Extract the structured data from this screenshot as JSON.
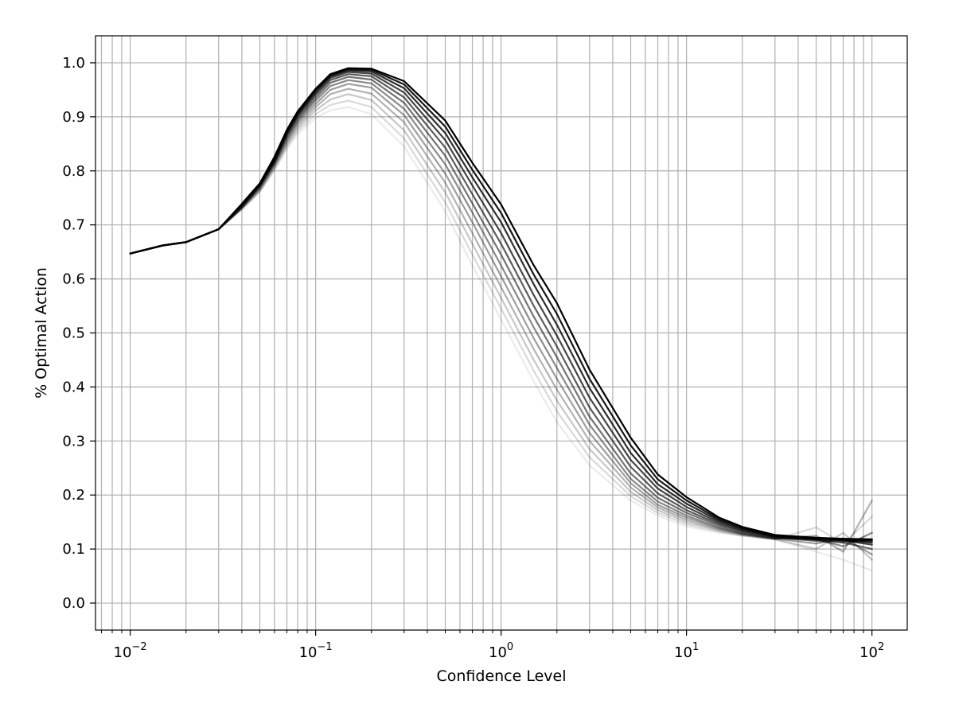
{
  "chart_data": {
    "type": "line",
    "title": "",
    "xlabel": "Confidence Level",
    "ylabel": "% Optimal Action",
    "x_scale": "log",
    "xlim": [
      0.0065,
      155
    ],
    "ylim": [
      -0.05,
      1.05
    ],
    "grid": true,
    "grid_minor_x": true,
    "legend": "none",
    "x_ticks": [
      {
        "value": 0.01,
        "base": "10",
        "exp": "−2"
      },
      {
        "value": 0.1,
        "base": "10",
        "exp": "−1"
      },
      {
        "value": 1,
        "base": "10",
        "exp": "0"
      },
      {
        "value": 10,
        "base": "10",
        "exp": "1"
      },
      {
        "value": 100,
        "base": "10",
        "exp": "2"
      }
    ],
    "y_ticks": [
      {
        "value": 0.0,
        "label": "0.0"
      },
      {
        "value": 0.1,
        "label": "0.1"
      },
      {
        "value": 0.2,
        "label": "0.2"
      },
      {
        "value": 0.3,
        "label": "0.3"
      },
      {
        "value": 0.4,
        "label": "0.4"
      },
      {
        "value": 0.5,
        "label": "0.5"
      },
      {
        "value": 0.6,
        "label": "0.6"
      },
      {
        "value": 0.7,
        "label": "0.7"
      },
      {
        "value": 0.8,
        "label": "0.8"
      },
      {
        "value": 0.9,
        "label": "0.9"
      },
      {
        "value": 1.0,
        "label": "1.0"
      }
    ],
    "line_color": "#000000",
    "x": [
      0.01,
      0.015,
      0.02,
      0.03,
      0.04,
      0.05,
      0.06,
      0.07,
      0.08,
      0.1,
      0.12,
      0.15,
      0.2,
      0.3,
      0.5,
      0.7,
      1.0,
      1.5,
      2,
      3,
      5,
      7,
      10,
      15,
      20,
      30,
      50,
      70,
      100
    ],
    "series": [
      {
        "opacity": 0.08,
        "values": [
          0.647,
          0.662,
          0.668,
          0.692,
          0.728,
          0.76,
          0.8,
          0.84,
          0.868,
          0.898,
          0.912,
          0.918,
          0.905,
          0.845,
          0.725,
          0.625,
          0.525,
          0.41,
          0.335,
          0.255,
          0.19,
          0.162,
          0.142,
          0.13,
          0.124,
          0.118,
          0.095,
          0.08,
          0.06
        ]
      },
      {
        "opacity": 0.15,
        "values": [
          0.647,
          0.662,
          0.668,
          0.692,
          0.729,
          0.762,
          0.803,
          0.844,
          0.873,
          0.905,
          0.922,
          0.93,
          0.918,
          0.86,
          0.742,
          0.645,
          0.545,
          0.43,
          0.355,
          0.27,
          0.198,
          0.167,
          0.146,
          0.132,
          0.125,
          0.118,
          0.14,
          0.11,
          0.16
        ]
      },
      {
        "opacity": 0.22,
        "values": [
          0.647,
          0.662,
          0.668,
          0.692,
          0.73,
          0.764,
          0.806,
          0.848,
          0.878,
          0.912,
          0.932,
          0.942,
          0.931,
          0.875,
          0.76,
          0.665,
          0.565,
          0.45,
          0.375,
          0.285,
          0.206,
          0.172,
          0.15,
          0.134,
          0.126,
          0.118,
          0.1,
          0.13,
          0.08
        ]
      },
      {
        "opacity": 0.3,
        "values": [
          0.647,
          0.662,
          0.668,
          0.692,
          0.731,
          0.766,
          0.809,
          0.852,
          0.883,
          0.918,
          0.942,
          0.952,
          0.943,
          0.89,
          0.778,
          0.685,
          0.585,
          0.47,
          0.395,
          0.3,
          0.214,
          0.177,
          0.154,
          0.136,
          0.127,
          0.119,
          0.125,
          0.095,
          0.19
        ]
      },
      {
        "opacity": 0.38,
        "values": [
          0.647,
          0.662,
          0.668,
          0.692,
          0.732,
          0.768,
          0.812,
          0.856,
          0.888,
          0.924,
          0.95,
          0.961,
          0.954,
          0.903,
          0.795,
          0.705,
          0.605,
          0.49,
          0.415,
          0.315,
          0.222,
          0.182,
          0.158,
          0.138,
          0.128,
          0.119,
          0.11,
          0.12,
          0.09
        ]
      },
      {
        "opacity": 0.46,
        "values": [
          0.647,
          0.662,
          0.668,
          0.692,
          0.733,
          0.77,
          0.814,
          0.86,
          0.892,
          0.93,
          0.957,
          0.968,
          0.962,
          0.915,
          0.812,
          0.723,
          0.625,
          0.51,
          0.435,
          0.33,
          0.23,
          0.188,
          0.162,
          0.14,
          0.129,
          0.12,
          0.118,
          0.105,
          0.13
        ]
      },
      {
        "opacity": 0.55,
        "values": [
          0.647,
          0.662,
          0.668,
          0.692,
          0.734,
          0.772,
          0.816,
          0.864,
          0.896,
          0.935,
          0.963,
          0.974,
          0.969,
          0.926,
          0.828,
          0.74,
          0.645,
          0.53,
          0.455,
          0.345,
          0.24,
          0.195,
          0.167,
          0.143,
          0.131,
          0.121,
          0.115,
          0.112,
          0.1
        ]
      },
      {
        "opacity": 0.64,
        "values": [
          0.647,
          0.662,
          0.668,
          0.692,
          0.735,
          0.773,
          0.818,
          0.867,
          0.9,
          0.94,
          0.968,
          0.979,
          0.975,
          0.936,
          0.843,
          0.757,
          0.665,
          0.55,
          0.475,
          0.362,
          0.252,
          0.203,
          0.172,
          0.146,
          0.133,
          0.122,
          0.117,
          0.114,
          0.115
        ]
      },
      {
        "opacity": 0.73,
        "values": [
          0.647,
          0.662,
          0.668,
          0.692,
          0.736,
          0.774,
          0.82,
          0.87,
          0.903,
          0.944,
          0.972,
          0.983,
          0.98,
          0.945,
          0.857,
          0.773,
          0.685,
          0.57,
          0.495,
          0.38,
          0.265,
          0.212,
          0.178,
          0.149,
          0.135,
          0.123,
          0.118,
          0.116,
          0.108
        ]
      },
      {
        "opacity": 0.82,
        "values": [
          0.647,
          0.662,
          0.668,
          0.692,
          0.737,
          0.775,
          0.822,
          0.872,
          0.906,
          0.947,
          0.975,
          0.986,
          0.984,
          0.953,
          0.87,
          0.788,
          0.705,
          0.59,
          0.515,
          0.398,
          0.278,
          0.22,
          0.184,
          0.152,
          0.137,
          0.124,
          0.119,
          0.117,
          0.112
        ]
      },
      {
        "opacity": 0.91,
        "values": [
          0.647,
          0.662,
          0.668,
          0.692,
          0.738,
          0.776,
          0.824,
          0.874,
          0.908,
          0.95,
          0.977,
          0.988,
          0.987,
          0.96,
          0.882,
          0.802,
          0.722,
          0.608,
          0.535,
          0.415,
          0.292,
          0.229,
          0.19,
          0.155,
          0.139,
          0.125,
          0.12,
          0.118,
          0.116
        ]
      },
      {
        "opacity": 1.0,
        "values": [
          0.647,
          0.662,
          0.668,
          0.692,
          0.739,
          0.777,
          0.826,
          0.876,
          0.91,
          0.952,
          0.979,
          0.99,
          0.989,
          0.966,
          0.893,
          0.815,
          0.738,
          0.625,
          0.555,
          0.432,
          0.306,
          0.238,
          0.196,
          0.158,
          0.141,
          0.126,
          0.121,
          0.119,
          0.118
        ]
      }
    ]
  }
}
